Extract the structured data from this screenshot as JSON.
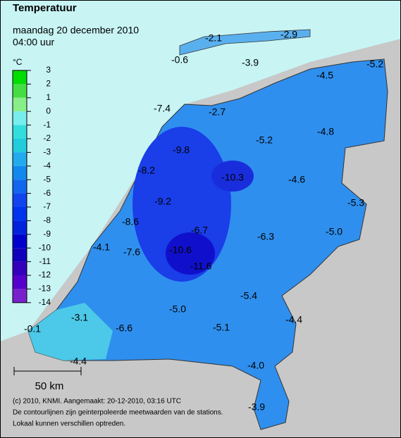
{
  "header": {
    "title": "Temperatuur",
    "date": "maandag 20 december 2010",
    "time": "04:00 uur"
  },
  "legend": {
    "unit": "°C",
    "ticks": [
      3,
      2,
      1,
      0,
      -1,
      -2,
      -3,
      -4,
      -5,
      -6,
      -7,
      -8,
      -9,
      -10,
      -11,
      -12,
      -13,
      -14
    ],
    "colors": [
      "#00dd00",
      "#44dd44",
      "#88ee88",
      "#77eeee",
      "#33dddd",
      "#22ccdd",
      "#22aaee",
      "#1188ee",
      "#1166ee",
      "#1144ee",
      "#0033ee",
      "#0022dd",
      "#0000cc",
      "#1100bb",
      "#3300bb",
      "#5500cc",
      "#7722cc"
    ]
  },
  "stations": [
    "-2.1",
    "-2.9",
    "-0.6",
    "-3.9",
    "-5.2",
    "-4.5",
    "-7.4",
    "-2.7",
    "-4.8",
    "-5.2",
    "-9.8",
    "-8.2",
    "-10.3",
    "-4.6",
    "-9.2",
    "-5.3",
    "-8.6",
    "-6.7",
    "-5.0",
    "-6.3",
    "-4.1",
    "-7.6",
    "-10.6",
    "-11.6",
    "-5.4",
    "-5.0",
    "-4.4",
    "-3.1",
    "-0.1",
    "-6.6",
    "-5.1",
    "-4.4",
    "-4.0",
    "-3.9"
  ],
  "scale": "50 km",
  "footer": [
    "(c) 2010, KNMI. Aangemaakt: 20-12-2010, 03:16 UTC",
    "De contourlijnen zijn geinterpoleerde meetwaarden van de stations.",
    "Lokaal kunnen verschillen optreden."
  ]
}
